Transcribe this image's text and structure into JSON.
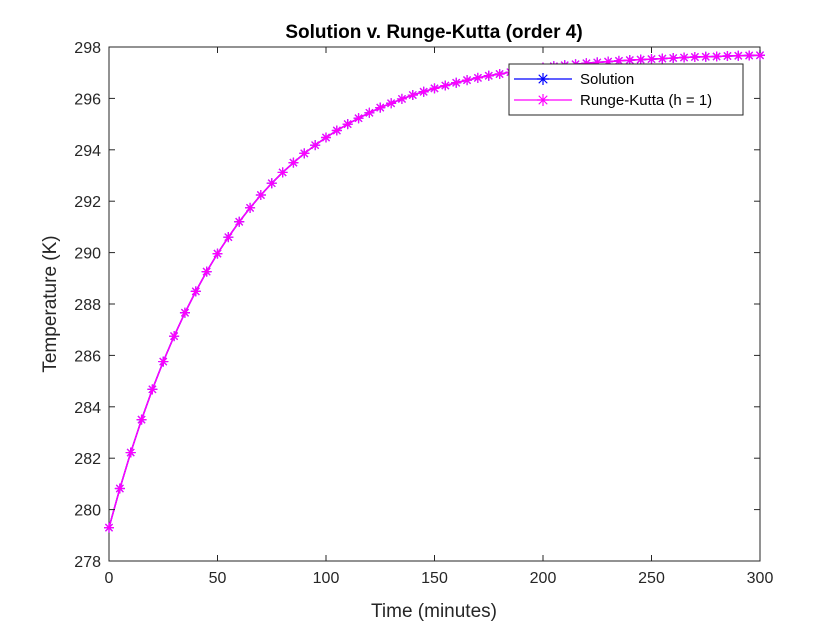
{
  "chart_data": {
    "type": "line",
    "title": "Solution v. Runge-Kutta (order 4)",
    "xlabel": "Time (minutes)",
    "ylabel": "Temperature (K)",
    "xlim": [
      0,
      300
    ],
    "ylim": [
      278,
      298
    ],
    "xticks": [
      "0",
      "50",
      "100",
      "150",
      "200",
      "250",
      "300"
    ],
    "yticks": [
      "278",
      "280",
      "282",
      "284",
      "286",
      "288",
      "290",
      "292",
      "294",
      "296",
      "298"
    ],
    "grid": false,
    "legend_position": "top-right",
    "x": [
      0,
      5,
      10,
      15,
      20,
      25,
      30,
      35,
      40,
      45,
      50,
      55,
      60,
      65,
      70,
      75,
      80,
      85,
      90,
      95,
      100,
      105,
      110,
      115,
      120,
      125,
      130,
      135,
      140,
      145,
      150,
      155,
      160,
      165,
      170,
      175,
      180,
      185,
      190,
      195,
      200,
      205,
      210,
      215,
      220,
      225,
      230,
      235,
      240,
      245,
      250,
      255,
      260,
      265,
      270,
      275,
      280,
      285,
      290,
      295,
      300
    ],
    "series": [
      {
        "name": "Solution",
        "color": "#0000ff",
        "marker": "asterisk",
        "values": [
          279.3,
          280.82,
          282.22,
          283.5,
          284.68,
          285.76,
          286.75,
          287.66,
          288.49,
          289.26,
          289.96,
          290.6,
          291.2,
          291.74,
          292.24,
          292.7,
          293.12,
          293.5,
          293.86,
          294.18,
          294.48,
          294.75,
          295.0,
          295.23,
          295.44,
          295.64,
          295.81,
          295.98,
          296.13,
          296.26,
          296.39,
          296.5,
          296.61,
          296.71,
          296.8,
          296.88,
          296.95,
          297.02,
          297.09,
          297.14,
          297.2,
          297.25,
          297.29,
          297.33,
          297.37,
          297.4,
          297.43,
          297.46,
          297.49,
          297.51,
          297.53,
          297.55,
          297.57,
          297.59,
          297.61,
          297.62,
          297.63,
          297.65,
          297.66,
          297.67,
          297.68
        ]
      },
      {
        "name": "Runge-Kutta (h = 1)",
        "color": "#ff00ff",
        "marker": "asterisk",
        "values": [
          279.3,
          280.82,
          282.22,
          283.5,
          284.68,
          285.76,
          286.75,
          287.66,
          288.49,
          289.26,
          289.96,
          290.6,
          291.2,
          291.74,
          292.24,
          292.7,
          293.12,
          293.5,
          293.86,
          294.18,
          294.48,
          294.75,
          295.0,
          295.23,
          295.44,
          295.64,
          295.81,
          295.98,
          296.13,
          296.26,
          296.39,
          296.5,
          296.61,
          296.71,
          296.8,
          296.88,
          296.95,
          297.02,
          297.09,
          297.14,
          297.2,
          297.25,
          297.29,
          297.33,
          297.37,
          297.4,
          297.43,
          297.46,
          297.49,
          297.51,
          297.53,
          297.55,
          297.57,
          297.59,
          297.61,
          297.62,
          297.63,
          297.65,
          297.66,
          297.67,
          297.68
        ]
      }
    ]
  }
}
